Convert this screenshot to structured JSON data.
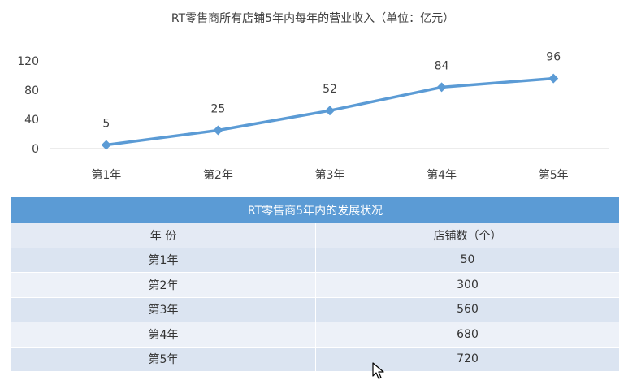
{
  "chart_data": {
    "type": "line",
    "title": "RT零售商所有店铺5年内每年的营业收入（单位：亿元）",
    "categories": [
      "第1年",
      "第2年",
      "第3年",
      "第4年",
      "第5年"
    ],
    "values": [
      5,
      25,
      52,
      84,
      96
    ],
    "yticks": [
      0,
      40,
      80,
      120
    ],
    "ylim": [
      0,
      120
    ],
    "grid": false,
    "color": "#5b9bd5"
  },
  "table": {
    "caption": "RT零售商5年内的发展状况",
    "headers": [
      "年 份",
      "店铺数（个）"
    ],
    "rows": [
      [
        "第1年",
        "50"
      ],
      [
        "第2年",
        "300"
      ],
      [
        "第3年",
        "560"
      ],
      [
        "第4年",
        "680"
      ],
      [
        "第5年",
        "720"
      ]
    ]
  },
  "cursor_icon": "mouse-pointer-icon"
}
